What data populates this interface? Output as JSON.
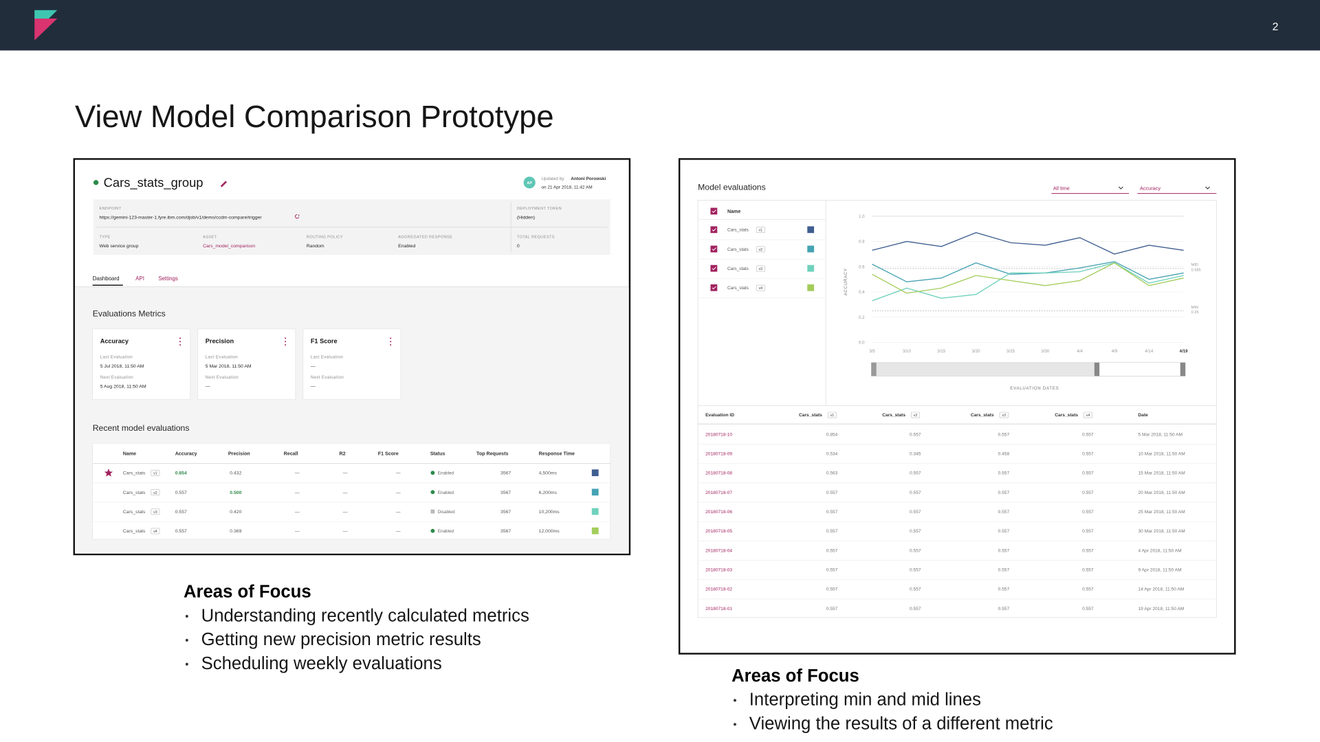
{
  "header": {
    "page_number": "2"
  },
  "title": "View Model Comparison Prototype",
  "left_panel": {
    "group_name": "Cars_stats_group",
    "avatar": "AP",
    "updated_label": "Updated by",
    "updated_name": "Antoni Porowski",
    "updated_on": "on 21 Apr 2018, 11:42 AM",
    "fields": [
      {
        "label": "ENDPOINT",
        "value": "https://gemini-123-master-1.fyre.ibm.com/djob/v1/demo/ccdm-compare/trigger"
      },
      {
        "label": "DEPLOYMENT TOKEN",
        "value": "(Hidden)"
      },
      {
        "label": "TYPE",
        "value": "Web service group"
      },
      {
        "label": "ASSET",
        "value": "Cars_model_comparison"
      },
      {
        "label": "ROUTING POLICY",
        "value": "Random"
      },
      {
        "label": "AGGREGATED RESPONSE",
        "value": "Enabled"
      },
      {
        "label": "TOTAL REQUESTS",
        "value": "0"
      }
    ],
    "tabs": [
      "Dashboard",
      "API",
      "Settings"
    ],
    "metrics_title": "Evaluations Metrics",
    "metric_cards": [
      {
        "name": "Accuracy",
        "last_label": "Last Evaluation",
        "last": "5 Jul 2018, 11:50 AM",
        "next_label": "Next Evaluation",
        "next": "5 Aug 2018, 11:50 AM"
      },
      {
        "name": "Precision",
        "last_label": "Last Evaluation",
        "last": "5 Mar 2018, 11:50 AM",
        "next_label": "Next Evaluation",
        "next": "—"
      },
      {
        "name": "F1 Score",
        "last_label": "Last Evaluation",
        "last": "—",
        "next_label": "Next Evaluation",
        "next": "—"
      }
    ],
    "recent_title": "Recent model evaluations",
    "table": {
      "columns": [
        "Name",
        "Accuracy",
        "Precision",
        "Recall",
        "R2",
        "F1 Score",
        "Status",
        "Top Requests",
        "Response Time"
      ],
      "rows": [
        {
          "name": "Cars_stats",
          "version": "v1",
          "accuracy": "0.854",
          "precision": "0.432",
          "recall": "—",
          "r2": "—",
          "f1": "—",
          "status": "Enabled",
          "top_requests": "3567",
          "response_time": "4,500ms",
          "color": "#3f5e91"
        },
        {
          "name": "Cars_stats",
          "version": "v2",
          "accuracy": "0.557",
          "precision": "0.500",
          "recall": "—",
          "r2": "—",
          "f1": "—",
          "status": "Enabled",
          "top_requests": "3567",
          "response_time": "6,200ms",
          "color": "#45a3b3"
        },
        {
          "name": "Cars_stats",
          "version": "v3",
          "accuracy": "0.557",
          "precision": "0.420",
          "recall": "—",
          "r2": "—",
          "f1": "—",
          "status": "Disabled",
          "top_requests": "3567",
          "response_time": "10,200ms",
          "color": "#6fd1bc"
        },
        {
          "name": "Cars_stats",
          "version": "v4",
          "accuracy": "0.557",
          "precision": "0.369",
          "recall": "—",
          "r2": "—",
          "f1": "—",
          "status": "Enabled",
          "top_requests": "3567",
          "response_time": "12,000ms",
          "color": "#a3cc5a"
        }
      ]
    }
  },
  "right_panel": {
    "title": "Model evaluations",
    "filters": [
      "All time",
      "Accuracy"
    ],
    "legend_header": "Name",
    "chart": {
      "type": "line",
      "y_label": "ACCURACY",
      "x_label": "EVALUATION DATES",
      "categories": [
        "3/5",
        "3/10",
        "3/15",
        "3/20",
        "3/25",
        "3/30",
        "4/4",
        "4/9",
        "4/14",
        "4/19"
      ],
      "ylim": [
        0,
        1
      ],
      "yticks": [
        {
          "value": 0,
          "label": "0.0"
        },
        0.2,
        0.4,
        0.6,
        0.8,
        {
          "value": 1,
          "label": "1.0"
        }
      ],
      "grid": true,
      "series": [
        {
          "name": "Cars_stats",
          "version": "v1",
          "color": "#3f5e91",
          "values": [
            0.73,
            0.8,
            0.76,
            0.87,
            0.79,
            0.77,
            0.83,
            0.7,
            0.77,
            0.73
          ]
        },
        {
          "name": "Cars_stats",
          "version": "v2",
          "color": "#45a3b3",
          "values": [
            0.62,
            0.48,
            0.51,
            0.63,
            0.54,
            0.55,
            0.59,
            0.64,
            0.5,
            0.55
          ]
        },
        {
          "name": "Cars_stats",
          "version": "v3",
          "color": "#6fd1bc",
          "values": [
            0.33,
            0.43,
            0.35,
            0.38,
            0.55,
            0.55,
            0.56,
            0.63,
            0.47,
            0.53
          ]
        },
        {
          "name": "Cars_stats",
          "version": "v4",
          "color": "#a3cc5a",
          "values": [
            0.54,
            0.39,
            0.43,
            0.53,
            0.49,
            0.45,
            0.49,
            0.63,
            0.45,
            0.51
          ]
        }
      ],
      "reference_lines": [
        {
          "label": "MID",
          "value": 0.585,
          "value_label": "0.585"
        },
        {
          "label": "MIN",
          "value": 0.25,
          "value_label": "0.25"
        }
      ]
    },
    "table": {
      "columns": [
        {
          "name": "Evaluation ID"
        },
        {
          "name": "Cars_stats",
          "version": "v1"
        },
        {
          "name": "Cars_stats",
          "version": "v2"
        },
        {
          "name": "Cars_stats",
          "version": "v3"
        },
        {
          "name": "Cars_stats",
          "version": "v4"
        },
        {
          "name": "Date"
        }
      ],
      "rows": [
        [
          "20180718-10",
          "0.854",
          "0.557",
          "0.557",
          "0.557",
          "5 Mar 2018, 11:50 AM"
        ],
        [
          "20180718-09",
          "0.534",
          "0.345",
          "0.458",
          "0.557",
          "10 Mar 2018, 11:50 AM"
        ],
        [
          "20180718-08",
          "0.563",
          "0.557",
          "0.557",
          "0.557",
          "15 Mar 2018, 11:50 AM"
        ],
        [
          "20180718-07",
          "0.557",
          "0.557",
          "0.557",
          "0.557",
          "20 Mar 2018, 11:50 AM"
        ],
        [
          "20180718-06",
          "0.557",
          "0.557",
          "0.557",
          "0.557",
          "25 Mar 2018, 11:50 AM"
        ],
        [
          "20180718-05",
          "0.557",
          "0.557",
          "0.557",
          "0.557",
          "30 Mar 2018, 11:50 AM"
        ],
        [
          "20180718-04",
          "0.557",
          "0.557",
          "0.557",
          "0.557",
          "4 Apr 2018, 11:50 AM"
        ],
        [
          "20180718-03",
          "0.557",
          "0.557",
          "0.557",
          "0.557",
          "9 Apr 2018, 11:50 AM"
        ],
        [
          "20180718-02",
          "0.557",
          "0.557",
          "0.557",
          "0.557",
          "14 Apr 2018, 11:50 AM"
        ],
        [
          "20180718-01",
          "0.557",
          "0.557",
          "0.557",
          "0.557",
          "19 Apr 2018, 11:50 AM"
        ]
      ]
    }
  },
  "areas_left": {
    "heading": "Areas of Focus",
    "items": [
      "Understanding recently calculated metrics",
      "Getting new precision metric results",
      "Scheduling weekly evaluations"
    ]
  },
  "areas_right": {
    "heading": "Areas of Focus",
    "items": [
      "Interpreting min and mid lines",
      "Viewing the results of a different metric"
    ]
  }
}
